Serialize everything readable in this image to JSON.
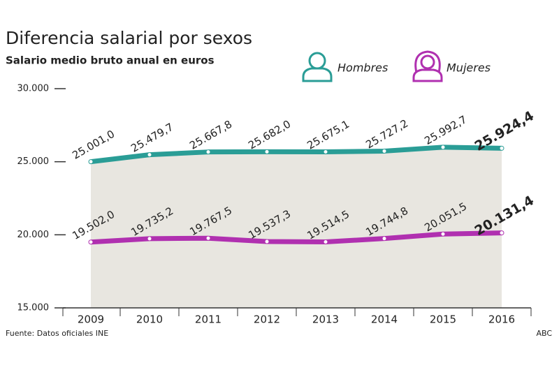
{
  "chart_data": {
    "type": "line",
    "title": "Diferencia salarial por sexos",
    "subtitle": "Salario medio bruto anual en euros",
    "source": "Fuente: Datos oficiales INE",
    "credit": "ABC",
    "categories": [
      "2009",
      "2010",
      "2011",
      "2012",
      "2013",
      "2014",
      "2015",
      "2016"
    ],
    "series": [
      {
        "name": "Hombres",
        "color": "#2a9d96",
        "values": [
          25001.0,
          25479.7,
          25667.8,
          25682.0,
          25675.1,
          25727.2,
          25992.7,
          25924.4
        ],
        "value_labels": [
          "25.001,0",
          "25.479,7",
          "25.667,8",
          "25.682,0",
          "25.675,1",
          "25.727,2",
          "25.992,7",
          "25.924,4"
        ]
      },
      {
        "name": "Mujeres",
        "color": "#b030b0",
        "values": [
          19502.0,
          19735.2,
          19767.5,
          19537.3,
          19514.5,
          19744.8,
          20051.5,
          20131.4
        ],
        "value_labels": [
          "19.502,0",
          "19.735,2",
          "19.767,5",
          "19.537,3",
          "19.514,5",
          "19.744,8",
          "20.051,5",
          "20.131,4"
        ]
      }
    ],
    "ylim": [
      15000,
      30000
    ],
    "yticks": [
      {
        "value": 15000,
        "label": "15.000"
      },
      {
        "value": 20000,
        "label": "20.000"
      },
      {
        "value": 25000,
        "label": "25.000"
      },
      {
        "value": 30000,
        "label": "30.000"
      }
    ],
    "grid": false
  }
}
